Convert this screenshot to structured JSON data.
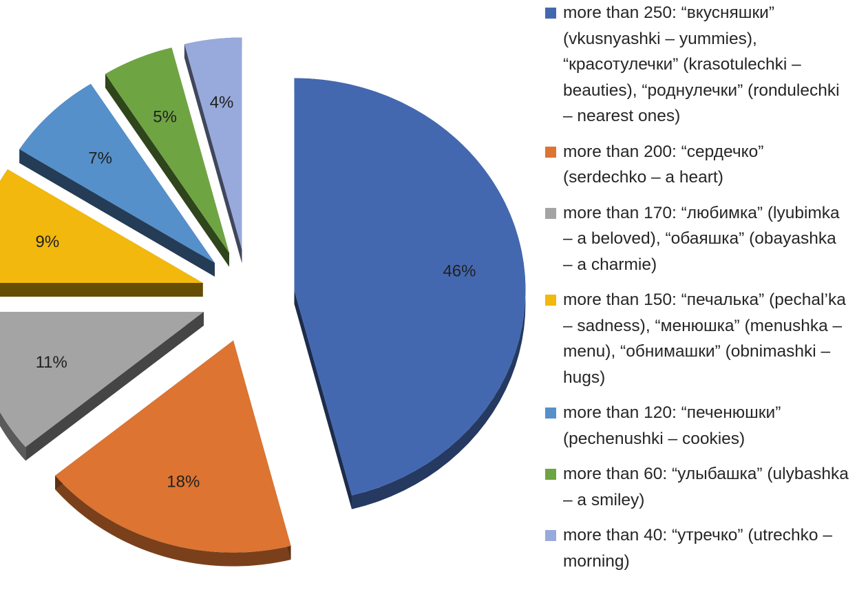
{
  "chart_data": {
    "type": "pie",
    "title": "",
    "style": "3d-exploded",
    "legend_position": "right",
    "slices": [
      {
        "label": "46%",
        "value": 46,
        "color": "#4468b0",
        "legend": "more than 250: “вкусняшки” (vkusnyashki – yummies), “красотулечки” (krasotulechki – beauties), “роднулечки” (rondulechki – nearest ones)"
      },
      {
        "label": "18%",
        "value": 18,
        "color": "#dd7431",
        "legend": "more than 200: “сердечко” (serdechko – a heart)"
      },
      {
        "label": "11%",
        "value": 11,
        "color": "#a4a4a4",
        "legend": "more than 170: “любимка” (lyubimka – a beloved), “обаяшка” (obayashka – a charmie)"
      },
      {
        "label": "9%",
        "value": 9,
        "color": "#f2b80d",
        "legend": "more than 150: “печалька” (pechal’ka – sadness), “менюшка” (menushka – menu), “обнимашки” (obnimashki – hugs)"
      },
      {
        "label": "7%",
        "value": 7,
        "color": "#5590cb",
        "legend": "more than 120: “печенюшки” (pechenushki – cookies)"
      },
      {
        "label": "5%",
        "value": 5,
        "color": "#6fa443",
        "legend": "more than 60: “улыбашка” (ulybashka – a smiley)"
      },
      {
        "label": "4%",
        "value": 4,
        "color": "#98aadb",
        "legend": "more than 40: “утречко” (utrechko – morning)"
      }
    ]
  }
}
